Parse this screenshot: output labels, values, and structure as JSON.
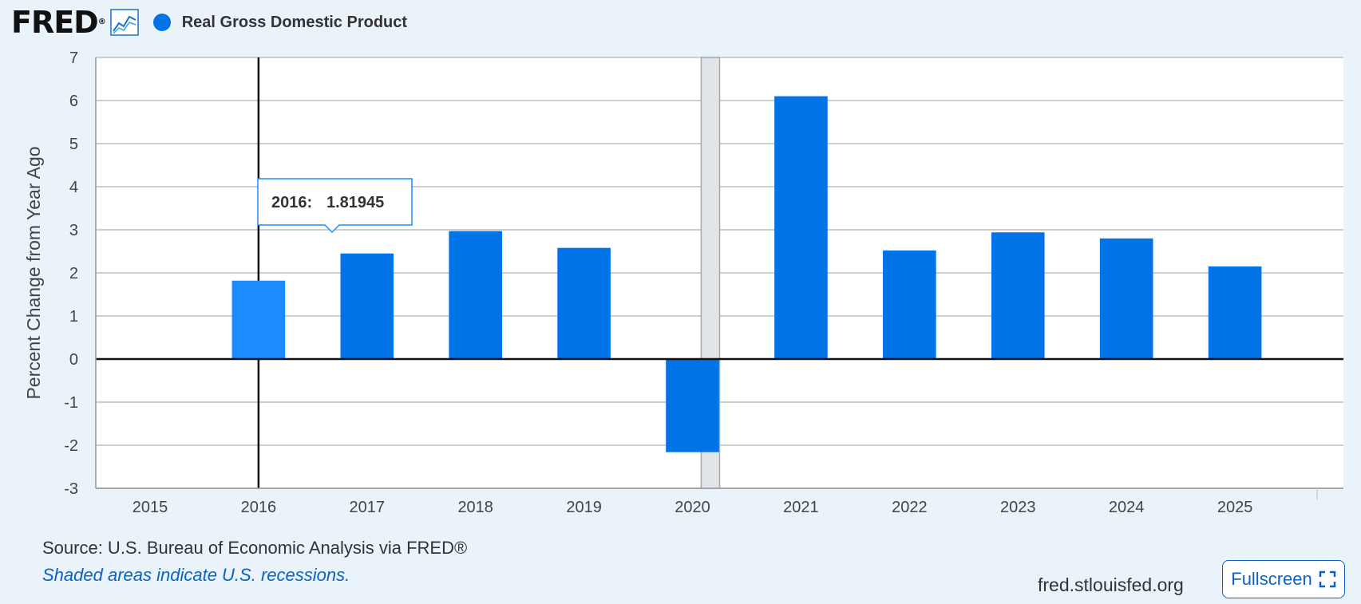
{
  "header": {
    "logo_text": "FRED",
    "legend_color": "#0073e6"
  },
  "chart_data": {
    "type": "bar",
    "title": "",
    "series": [
      {
        "name": "Real Gross Domestic Product",
        "color": "#0073e6"
      }
    ],
    "xlabel": "",
    "ylabel": "Percent Change from Year Ago",
    "ylim": [
      -3,
      7
    ],
    "yticks": [
      7,
      6,
      5,
      4,
      3,
      2,
      1,
      0,
      -1,
      -2,
      -3
    ],
    "xlim": [
      2014.5,
      2026
    ],
    "xticks": [
      "2015",
      "2016",
      "2017",
      "2018",
      "2019",
      "2020",
      "2021",
      "2022",
      "2023",
      "2024",
      "2025"
    ],
    "bars": [
      {
        "x": 2016,
        "y": 1.81945
      },
      {
        "x": 2017,
        "y": 2.45
      },
      {
        "x": 2018,
        "y": 2.97
      },
      {
        "x": 2019,
        "y": 2.58
      },
      {
        "x": 2020,
        "y": -2.16
      },
      {
        "x": 2021,
        "y": 6.1
      },
      {
        "x": 2022,
        "y": 2.52
      },
      {
        "x": 2023,
        "y": 2.94
      },
      {
        "x": 2024,
        "y": 2.8
      },
      {
        "x": 2025,
        "y": 2.15
      }
    ],
    "recession": {
      "start": 2020.08,
      "end": 2020.25
    },
    "highlight": {
      "x": 2016,
      "label": "2016:",
      "value": "1.81945",
      "highlight_color": "#1a8cff"
    },
    "grid": true
  },
  "footer": {
    "source": "Source: U.S. Bureau of Economic Analysis via FRED®",
    "recession_note": "Shaded areas indicate U.S. recessions.",
    "site": "fred.stlouisfed.org",
    "fullscreen_label": "Fullscreen"
  }
}
